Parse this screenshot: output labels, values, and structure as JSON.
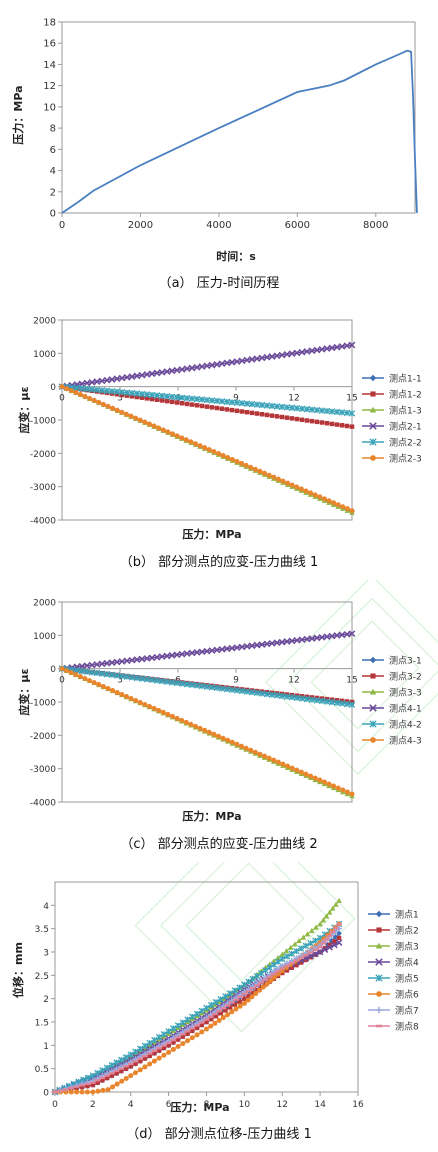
{
  "chart_data": [
    {
      "type": "line",
      "caption": "（a）  压力-时间历程",
      "xlabel": "时间：s",
      "ylabel": "压力：MPa",
      "xlim": [
        0,
        9000
      ],
      "ylim": [
        0,
        18
      ],
      "xticks": [
        0,
        2000,
        4000,
        6000,
        8000
      ],
      "yticks": [
        0,
        2,
        4,
        6,
        8,
        10,
        12,
        14,
        16,
        18
      ],
      "color": "#4a7fc1",
      "series": [
        {
          "x": [
            0,
            400,
            800,
            2000,
            4000,
            6000,
            6800,
            7200,
            8000,
            8500,
            8800,
            8900,
            8950,
            9000,
            9050
          ],
          "y": [
            0,
            1.0,
            2.1,
            4.5,
            8.0,
            11.4,
            12.0,
            12.5,
            14.0,
            14.8,
            15.3,
            15.2,
            11.0,
            5.0,
            0
          ]
        }
      ]
    },
    {
      "type": "line",
      "caption": "（b）  部分测点的应变-压力曲线 1",
      "xlabel": "压力：MPa",
      "ylabel": "应变：με",
      "xlim": [
        0,
        15
      ],
      "ylim": [
        -4000,
        2000
      ],
      "xticks": [
        0,
        3,
        6,
        9,
        12,
        15
      ],
      "yticks": [
        -4000,
        -3000,
        -2000,
        -1000,
        0,
        1000,
        2000
      ],
      "legend_position": "right",
      "series": [
        {
          "name": "测点1-1",
          "color": "#3d6fb5",
          "x": [
            0,
            15
          ],
          "y": [
            0,
            -3750
          ]
        },
        {
          "name": "测点1-2",
          "color": "#b5373a",
          "x": [
            0,
            15
          ],
          "y": [
            0,
            -1200
          ]
        },
        {
          "name": "测点1-3",
          "color": "#8fb843",
          "x": [
            0,
            15
          ],
          "y": [
            0,
            -3780
          ]
        },
        {
          "name": "测点2-1",
          "color": "#6b4a99",
          "x": [
            0,
            15
          ],
          "y": [
            0,
            1250
          ]
        },
        {
          "name": "测点2-2",
          "color": "#3ba3b9",
          "x": [
            0,
            15
          ],
          "y": [
            0,
            -800
          ]
        },
        {
          "name": "测点2-3",
          "color": "#e8852d",
          "x": [
            0,
            15
          ],
          "y": [
            0,
            -3720
          ]
        }
      ]
    },
    {
      "type": "line",
      "caption": "（c）  部分测点的应变-压力曲线 2",
      "xlabel": "压力：MPa",
      "ylabel": "应变：με",
      "xlim": [
        0,
        15
      ],
      "ylim": [
        -4000,
        2000
      ],
      "xticks": [
        0,
        3,
        6,
        9,
        12,
        15
      ],
      "yticks": [
        -4000,
        -3000,
        -2000,
        -1000,
        0,
        1000,
        2000
      ],
      "legend_position": "right",
      "series": [
        {
          "name": "测点3-1",
          "color": "#3d6fb5",
          "x": [
            0,
            15
          ],
          "y": [
            0,
            -1050
          ]
        },
        {
          "name": "测点3-2",
          "color": "#b5373a",
          "x": [
            0,
            15
          ],
          "y": [
            0,
            -1000
          ]
        },
        {
          "name": "测点3-3",
          "color": "#8fb843",
          "x": [
            0,
            15
          ],
          "y": [
            0,
            -3820
          ]
        },
        {
          "name": "测点4-1",
          "color": "#6b4a99",
          "x": [
            0,
            15
          ],
          "y": [
            0,
            1050
          ]
        },
        {
          "name": "测点4-2",
          "color": "#3ba3b9",
          "x": [
            0,
            15
          ],
          "y": [
            0,
            -1080
          ]
        },
        {
          "name": "测点4-3",
          "color": "#e8852d",
          "x": [
            0,
            15
          ],
          "y": [
            0,
            -3760
          ]
        }
      ]
    },
    {
      "type": "line",
      "caption": "（d）  部分测点位移-压力曲线 1",
      "xlabel": "压力：MPa",
      "ylabel": "位移：mm",
      "xlim": [
        0,
        16
      ],
      "ylim": [
        0,
        4.5
      ],
      "xticks": [
        0,
        2,
        4,
        6,
        8,
        10,
        12,
        14,
        16
      ],
      "yticks": [
        0,
        0.5,
        1,
        1.5,
        2,
        2.5,
        3,
        3.5,
        4
      ],
      "legend_position": "right",
      "series": [
        {
          "name": "测点1",
          "color": "#3d6fb5",
          "x": [
            0,
            2,
            4,
            6,
            8,
            10,
            12,
            14,
            15
          ],
          "y": [
            0,
            0.15,
            0.55,
            1.0,
            1.5,
            2.1,
            2.6,
            3.0,
            3.4
          ]
        },
        {
          "name": "测点2",
          "color": "#b5373a",
          "x": [
            0,
            2,
            4,
            6,
            8,
            10,
            12,
            14,
            15
          ],
          "y": [
            0,
            0.15,
            0.55,
            1.0,
            1.5,
            2.0,
            2.55,
            3.0,
            3.3
          ]
        },
        {
          "name": "测点3",
          "color": "#8fb843",
          "x": [
            0,
            2,
            4,
            6,
            8,
            10,
            12,
            14,
            15
          ],
          "y": [
            0,
            0.3,
            0.75,
            1.25,
            1.75,
            2.3,
            2.95,
            3.6,
            4.1
          ]
        },
        {
          "name": "测点4",
          "color": "#6b4a99",
          "x": [
            0,
            2,
            4,
            6,
            8,
            10,
            12,
            14,
            15
          ],
          "y": [
            0,
            0.3,
            0.7,
            1.15,
            1.65,
            2.2,
            2.65,
            3.0,
            3.2
          ]
        },
        {
          "name": "测点5",
          "color": "#3ba3b9",
          "x": [
            0,
            2,
            4,
            6,
            8,
            10,
            12,
            14,
            15
          ],
          "y": [
            0,
            0.35,
            0.8,
            1.3,
            1.8,
            2.3,
            2.85,
            3.3,
            3.6
          ]
        },
        {
          "name": "测点6",
          "color": "#e8852d",
          "x": [
            0,
            2,
            2.8,
            4,
            6,
            8,
            10,
            12,
            14,
            15
          ],
          "y": [
            0,
            0,
            0.05,
            0.35,
            0.85,
            1.35,
            1.9,
            2.6,
            3.2,
            3.6
          ]
        },
        {
          "name": "测点7",
          "color": "#9aa9e0",
          "x": [
            0,
            2,
            4,
            6,
            8,
            10,
            12,
            14,
            15
          ],
          "y": [
            0,
            0.25,
            0.65,
            1.1,
            1.6,
            2.15,
            2.7,
            3.15,
            3.5
          ]
        },
        {
          "name": "测点8",
          "color": "#e0849a",
          "x": [
            0,
            2,
            4,
            6,
            8,
            10,
            12,
            14,
            15
          ],
          "y": [
            0,
            0.2,
            0.6,
            1.05,
            1.55,
            2.1,
            2.65,
            3.1,
            3.6
          ]
        }
      ]
    }
  ]
}
